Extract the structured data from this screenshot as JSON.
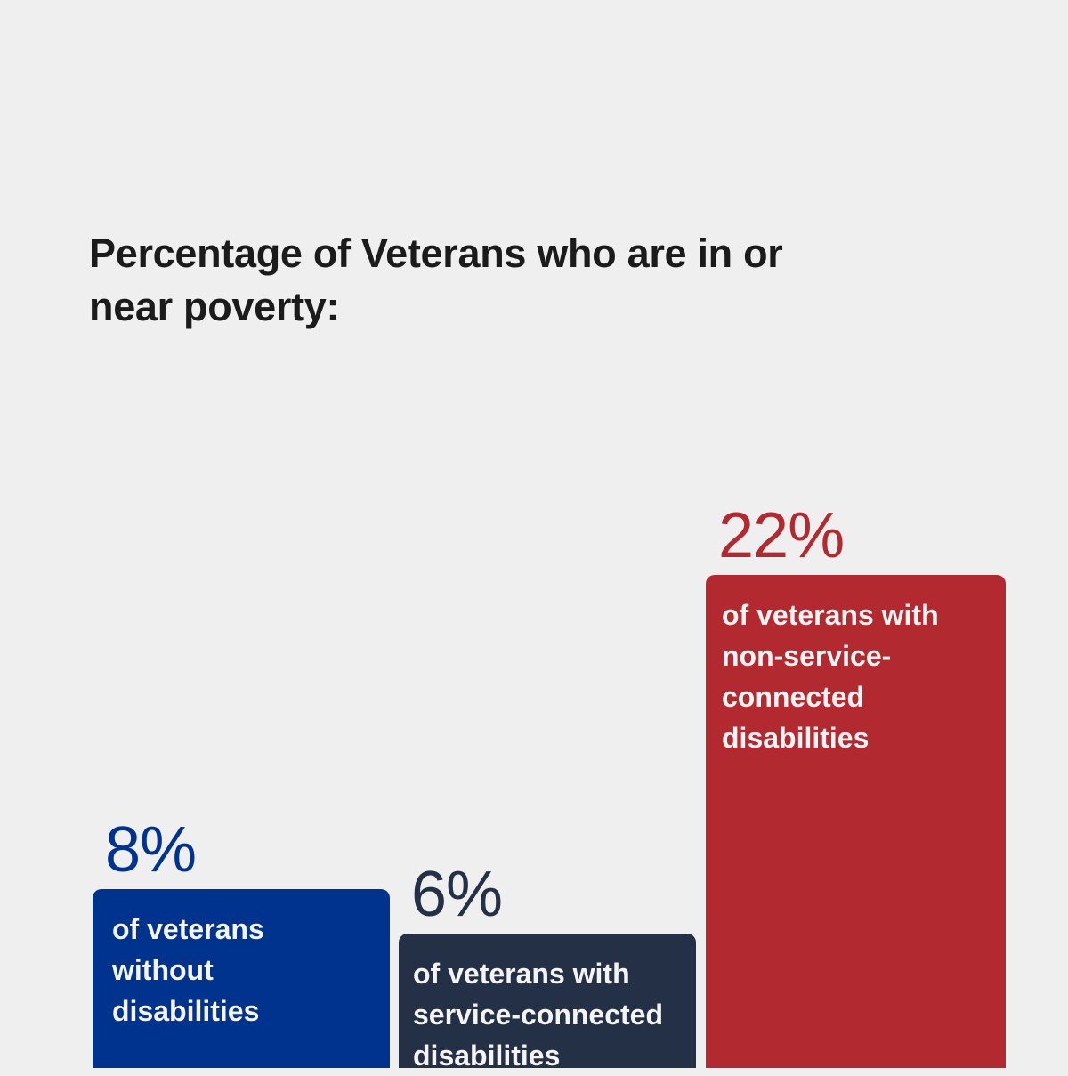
{
  "chart_data": {
    "type": "bar",
    "title": "Percentage of Veterans who are in or near poverty:",
    "categories": [
      "of veterans without disabilities",
      "of veterans with service-connected disabilities",
      "of veterans with non-service-connected disabilities"
    ],
    "values": [
      8,
      6,
      22
    ],
    "value_labels": [
      "8%",
      "6%",
      "22%"
    ],
    "colors": [
      "#00338d",
      "#243046",
      "#b22930"
    ],
    "xlabel": "",
    "ylabel": "",
    "ylim": [
      0,
      22
    ],
    "grid": false,
    "legend": "none"
  }
}
